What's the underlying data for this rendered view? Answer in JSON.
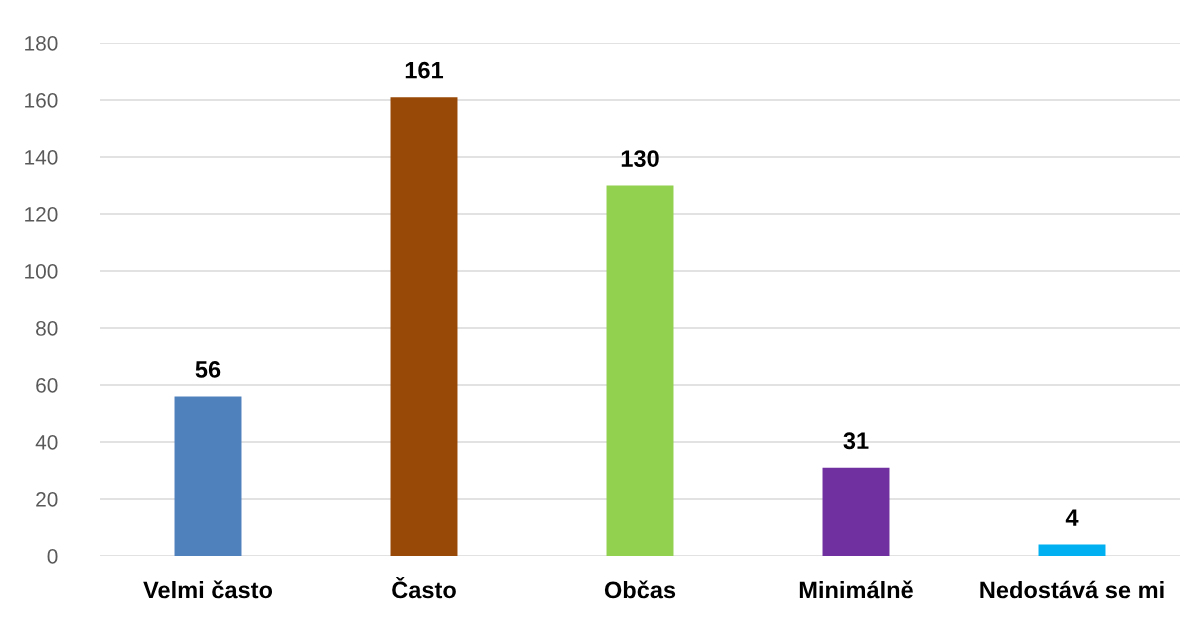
{
  "chart_data": {
    "type": "bar",
    "categories": [
      "Velmi často",
      "Často",
      "Občas",
      "Minimálně",
      "Nedostává se mi"
    ],
    "values": [
      56,
      161,
      130,
      31,
      4
    ],
    "colors": [
      "#4f81bd",
      "#984807",
      "#92d050",
      "#7030a0",
      "#00b0f0"
    ],
    "ylim": [
      0,
      180
    ],
    "yticks": [
      0,
      20,
      40,
      60,
      80,
      100,
      120,
      140,
      160,
      180
    ],
    "grid": "y",
    "data_labels": true
  }
}
